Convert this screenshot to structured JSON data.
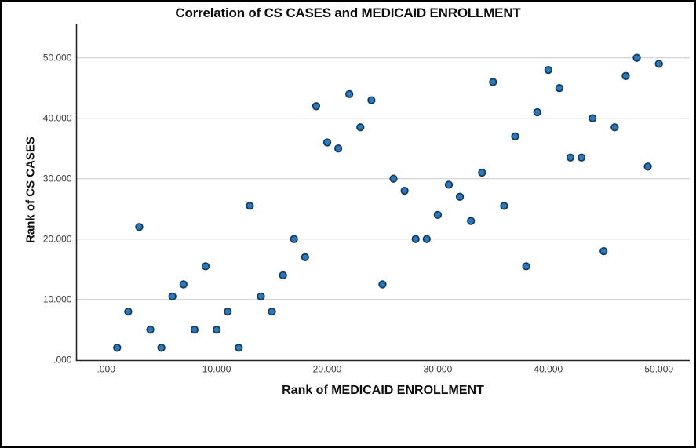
{
  "chart_data": {
    "type": "scatter",
    "title": "Correlation of CS CASES and MEDICAID ENROLLMENT",
    "xlabel": "Rank of MEDICAID ENROLLMENT",
    "ylabel": "Rank of CS CASES",
    "xlim": [
      -2.7,
      52.8
    ],
    "ylim": [
      -0.2,
      55.7
    ],
    "grid": "horizontal-only",
    "legend": "none",
    "x_ticks": {
      "values": [
        0,
        10,
        20,
        30,
        40,
        50
      ],
      "labels": [
        ".000",
        "10.000",
        "20.000",
        "30.000",
        "40.000",
        "50.000"
      ]
    },
    "y_ticks": {
      "values": [
        0,
        10,
        20,
        30,
        40,
        50
      ],
      "labels": [
        ".000",
        "10.000",
        "20.000",
        "30.000",
        "40.000",
        "50.000"
      ]
    },
    "points": [
      [
        1,
        2
      ],
      [
        2,
        8
      ],
      [
        3,
        22
      ],
      [
        4,
        5
      ],
      [
        5,
        2
      ],
      [
        6,
        10.5
      ],
      [
        7,
        12.5
      ],
      [
        8,
        5
      ],
      [
        9,
        15.5
      ],
      [
        10,
        5
      ],
      [
        11,
        8
      ],
      [
        12,
        2
      ],
      [
        13,
        25.5
      ],
      [
        14,
        10.5
      ],
      [
        15,
        8
      ],
      [
        16,
        14
      ],
      [
        17,
        20
      ],
      [
        18,
        17
      ],
      [
        19,
        42
      ],
      [
        20,
        36
      ],
      [
        21,
        35
      ],
      [
        22,
        44
      ],
      [
        23,
        38.5
      ],
      [
        24,
        43
      ],
      [
        25,
        12.5
      ],
      [
        26,
        30
      ],
      [
        27,
        28
      ],
      [
        28,
        20
      ],
      [
        29,
        20
      ],
      [
        30,
        24
      ],
      [
        31,
        29
      ],
      [
        32,
        27
      ],
      [
        33,
        23
      ],
      [
        34,
        31
      ],
      [
        35,
        46
      ],
      [
        36,
        25.5
      ],
      [
        37,
        37
      ],
      [
        38,
        15.5
      ],
      [
        39,
        41
      ],
      [
        40,
        48
      ],
      [
        41,
        45
      ],
      [
        42,
        33.5
      ],
      [
        43,
        33.5
      ],
      [
        44,
        40
      ],
      [
        45,
        18
      ],
      [
        46,
        38.5
      ],
      [
        47,
        47
      ],
      [
        48,
        50
      ],
      [
        49,
        32
      ],
      [
        50,
        49
      ]
    ]
  },
  "style": {
    "point_fill": "#2b79bb",
    "point_stroke": "#123a5c",
    "gridline_color": "#c9c9c9",
    "axis_line_color": "#262626",
    "tick_label_color": "#3a3a3a",
    "title_color": "#0d0d0d",
    "frame_border_color": "#000000",
    "background": "#ffffff"
  }
}
